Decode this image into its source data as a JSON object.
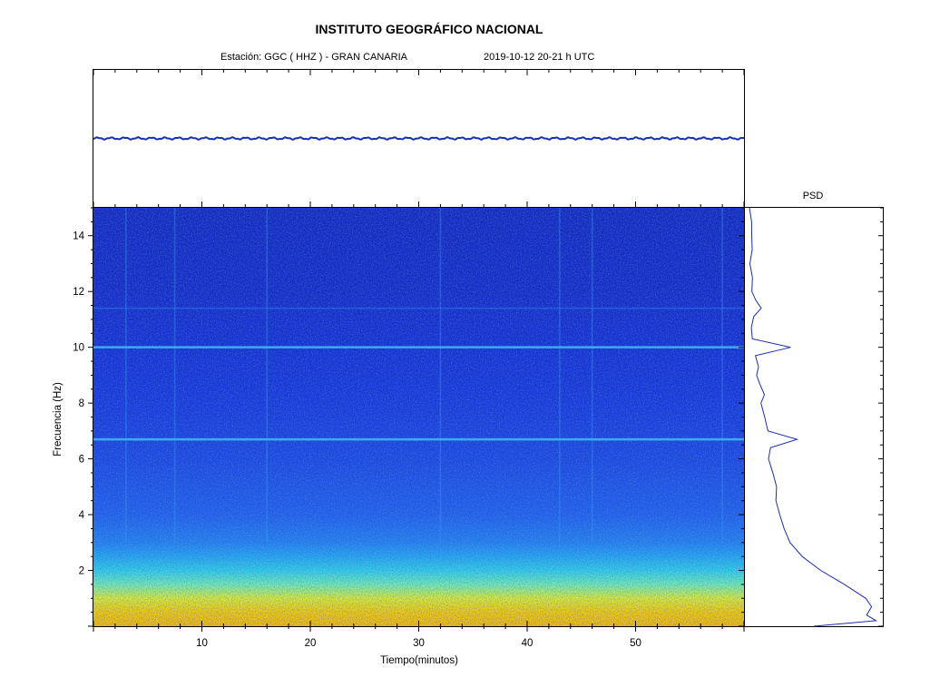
{
  "header": {
    "title": "INSTITUTO GEOGRÁFICO NACIONAL",
    "station": "Estación:  GGC ( HHZ ) - GRAN CANARIA",
    "datetime": "2019-10-12  20-21 h UTC"
  },
  "chart_data": [
    {
      "type": "line",
      "panel": "seismogram",
      "x": [
        0,
        10,
        20,
        30,
        40,
        50,
        60
      ],
      "y": [
        0,
        0,
        0,
        0,
        0,
        0,
        0
      ],
      "xlim": [
        0,
        60
      ],
      "ylim": [
        -1,
        1
      ],
      "line_color": "#1a2fb0"
    },
    {
      "type": "heatmap",
      "panel": "spectrogram",
      "xlabel": "Tiempo(minutos)",
      "ylabel": "Frecuencia  (Hz)",
      "xlim": [
        0,
        60
      ],
      "ylim": [
        0,
        15
      ],
      "x_ticks": [
        10,
        20,
        30,
        40,
        50
      ],
      "y_ticks": [
        2,
        4,
        6,
        8,
        10,
        12,
        14
      ],
      "colormap": [
        "#0a1aa0",
        "#1230d8",
        "#1e6af0",
        "#22c8f0",
        "#5af0c8",
        "#c8f050",
        "#f8f000",
        "#f8a000"
      ],
      "energy_profile": [
        {
          "f": 0.0,
          "level": 0.95
        },
        {
          "f": 0.5,
          "level": 0.92
        },
        {
          "f": 1.0,
          "level": 0.78
        },
        {
          "f": 1.5,
          "level": 0.6
        },
        {
          "f": 2.0,
          "level": 0.46
        },
        {
          "f": 2.5,
          "level": 0.38
        },
        {
          "f": 3.0,
          "level": 0.32
        },
        {
          "f": 4.0,
          "level": 0.26
        },
        {
          "f": 6.0,
          "level": 0.2
        },
        {
          "f": 8.0,
          "level": 0.16
        },
        {
          "f": 10.0,
          "level": 0.13
        },
        {
          "f": 12.0,
          "level": 0.1
        },
        {
          "f": 15.0,
          "level": 0.08
        }
      ],
      "spectral_lines_hz": [
        10.0,
        6.7,
        11.4
      ],
      "vertical_streaks_min": [
        3,
        7.5,
        16,
        32,
        43,
        46,
        58
      ]
    },
    {
      "type": "line",
      "panel": "psd",
      "title": "PSD",
      "f": [
        15.0,
        14.5,
        14.0,
        13.5,
        13.0,
        12.5,
        12.0,
        11.7,
        11.4,
        11.1,
        10.7,
        10.3,
        10.0,
        9.7,
        9.3,
        9.0,
        8.7,
        8.3,
        8.0,
        7.5,
        7.0,
        6.7,
        6.4,
        6.0,
        5.5,
        5.0,
        4.5,
        4.0,
        3.5,
        3.0,
        2.5,
        2.0,
        1.5,
        1.0,
        0.7,
        0.4,
        0.2,
        0.0
      ],
      "power": [
        0.02,
        0.03,
        0.03,
        0.04,
        0.03,
        0.05,
        0.04,
        0.06,
        0.1,
        0.05,
        0.04,
        0.05,
        0.33,
        0.06,
        0.08,
        0.07,
        0.1,
        0.14,
        0.11,
        0.13,
        0.15,
        0.37,
        0.18,
        0.17,
        0.2,
        0.22,
        0.21,
        0.24,
        0.28,
        0.33,
        0.42,
        0.55,
        0.72,
        0.88,
        0.93,
        0.9,
        0.97,
        0.5
      ],
      "xlim": [
        0,
        1
      ],
      "ylim": [
        0,
        15
      ],
      "line_color": "#1a2fb0"
    }
  ]
}
